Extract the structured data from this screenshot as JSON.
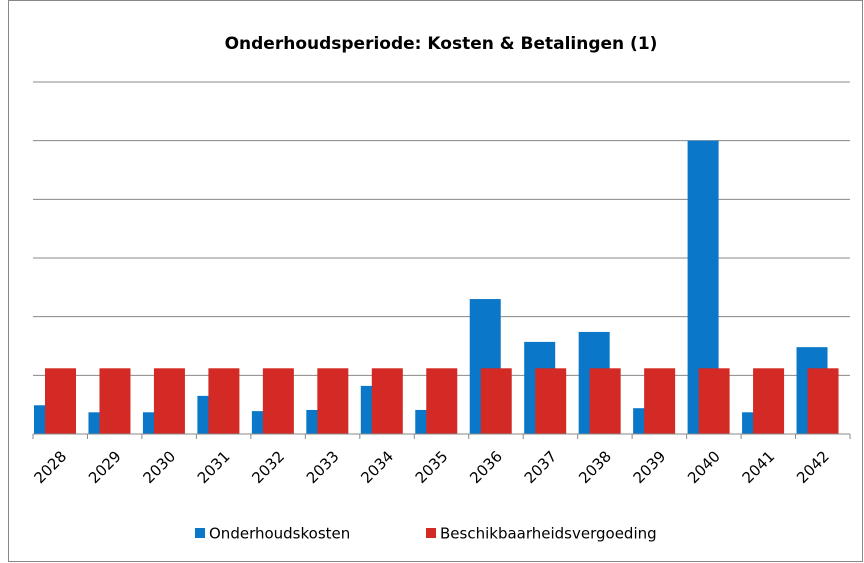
{
  "chart_data": {
    "type": "bar",
    "title": "Onderhoudsperiode: Kosten & Betalingen (1)",
    "categories": [
      "2028",
      "2029",
      "2030",
      "2031",
      "2032",
      "2033",
      "2034",
      "2035",
      "2036",
      "2037",
      "2038",
      "2039",
      "2040",
      "2041",
      "2042"
    ],
    "series": [
      {
        "name": "Onderhoudskosten",
        "color": "#0a77c8",
        "values": [
          0.49,
          0.37,
          0.37,
          0.65,
          0.39,
          0.41,
          0.82,
          0.41,
          2.3,
          1.57,
          1.74,
          0.44,
          5.0,
          0.37,
          1.48
        ]
      },
      {
        "name": "Beschikbaarheidsvergoeding",
        "color": "#d42a25",
        "values": [
          1.12,
          1.12,
          1.12,
          1.12,
          1.12,
          1.12,
          1.12,
          1.12,
          1.12,
          1.12,
          1.12,
          1.12,
          1.12,
          1.12,
          1.12
        ]
      }
    ],
    "ylim": [
      0,
      6
    ],
    "yticks": [
      0,
      1,
      2,
      3,
      4,
      5,
      6
    ],
    "grid": true,
    "legend": "bottom"
  }
}
